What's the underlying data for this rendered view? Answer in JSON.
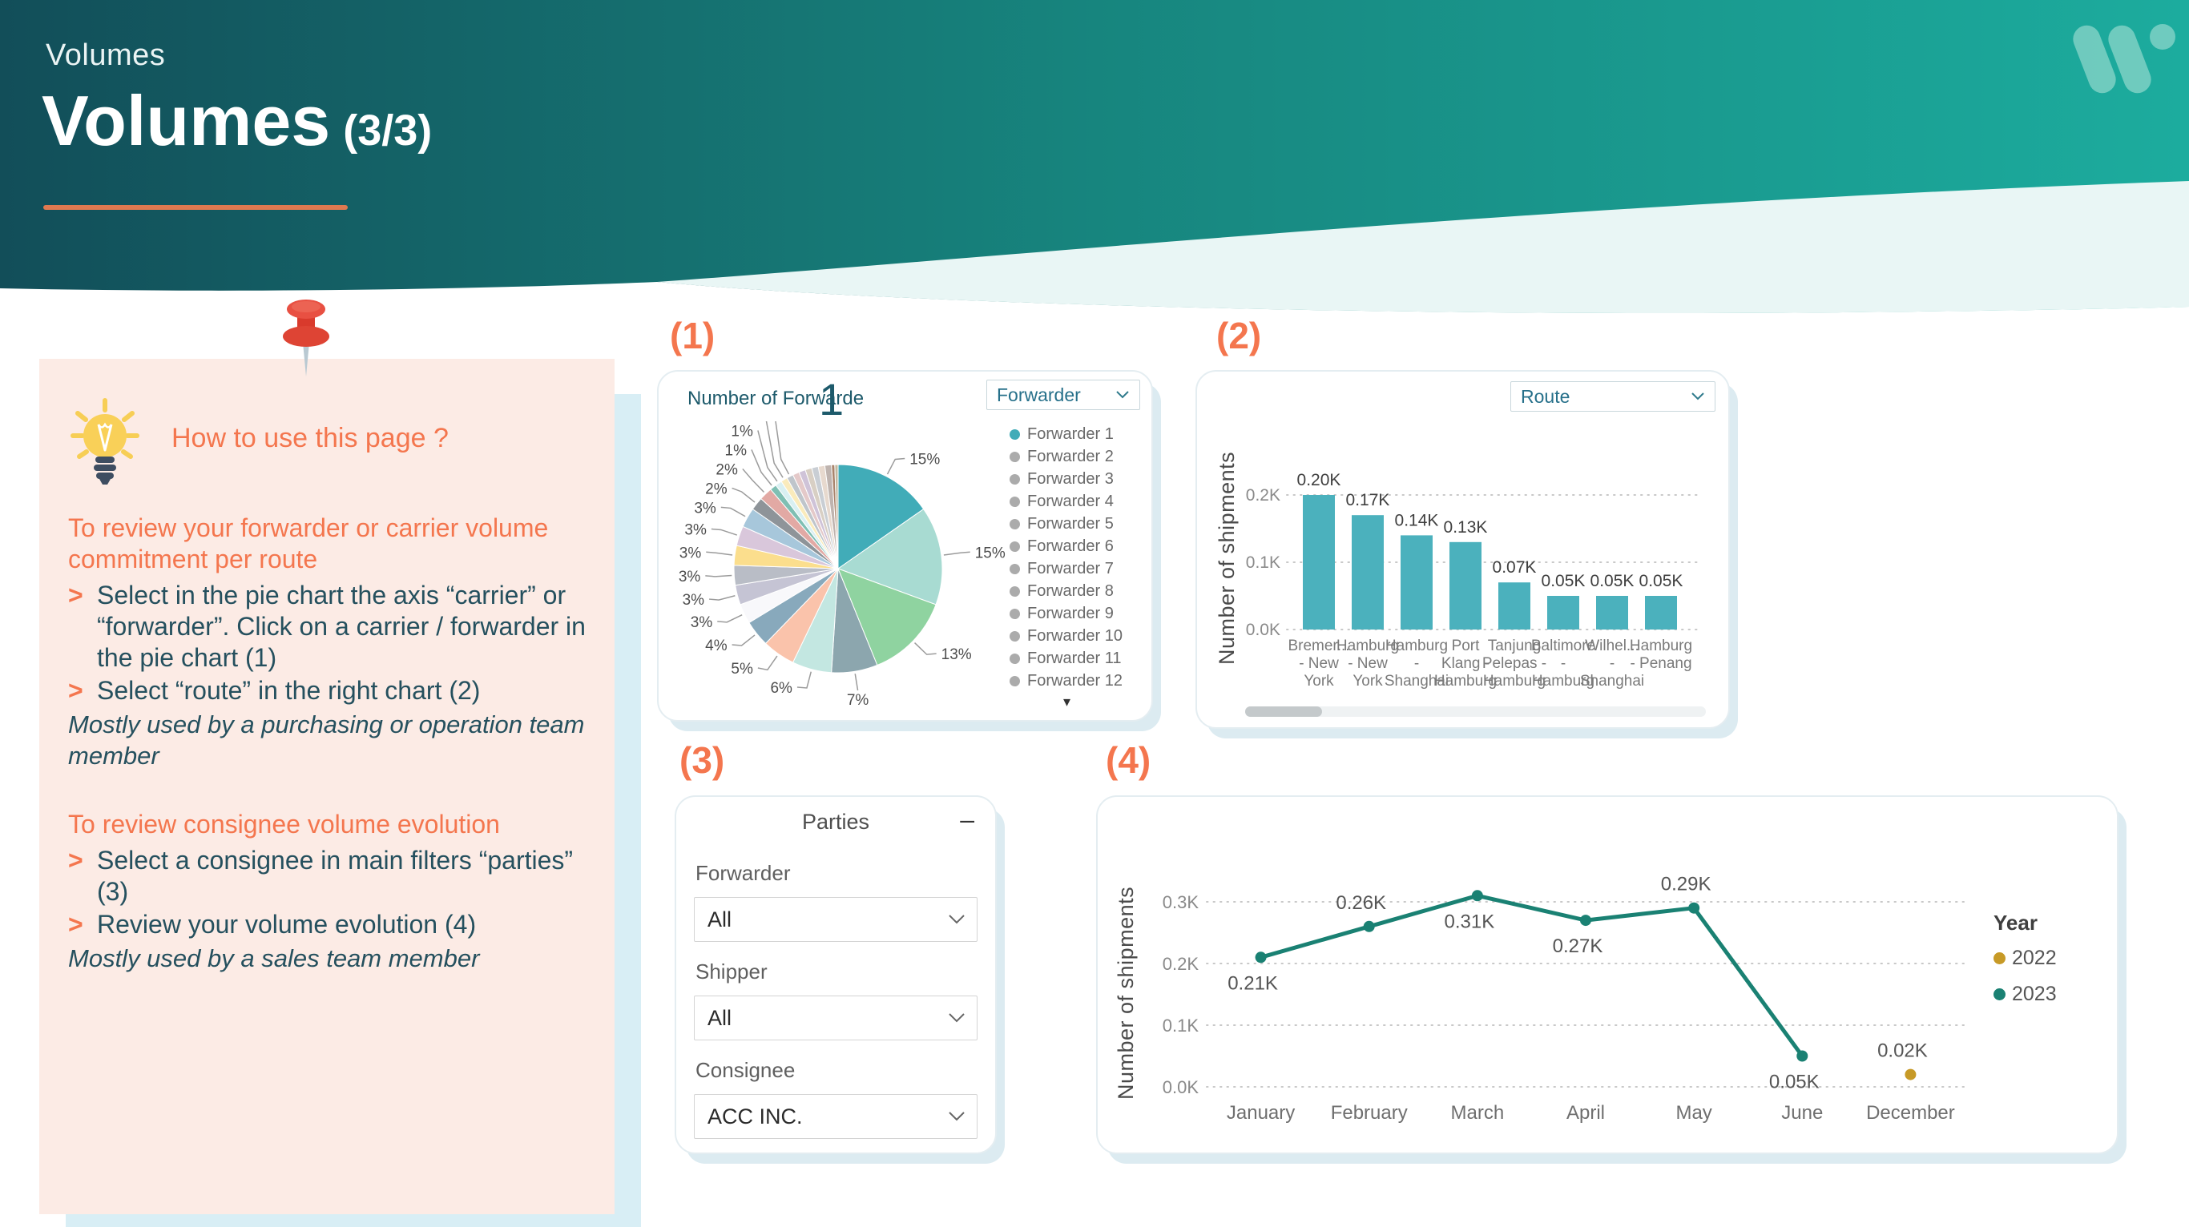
{
  "page": {
    "eyebrow": "Volumes",
    "title": "Volumes",
    "title_suffix": "(3/3)",
    "accent_color": "#F4764E",
    "header_gradient": [
      "#124E59",
      "#17857E",
      "#1CAC9E"
    ],
    "logo_color": "#7ED1C5"
  },
  "note": {
    "heading": "How to use this page ?",
    "bullet_marker": ">",
    "sections": [
      {
        "heading": "To review your forwarder or carrier volume commitment per route",
        "bullets": [
          "Select in the pie chart the axis “carrier” or “forwarder”. Click on a carrier / forwarder in the pie chart (1)",
          "Select “route” in the right chart (2)"
        ],
        "footnote": "Mostly used by a purchasing or operation team member"
      },
      {
        "heading": "To review consignee volume evolution",
        "bullets": [
          "Select a consignee in main filters “parties” (3)",
          "Review your volume evolution (4)"
        ],
        "footnote": "Mostly used by a sales team member"
      }
    ]
  },
  "panel1": {
    "marker": "(1)",
    "kpi_label": "Number of Forwarde",
    "kpi_value": "1",
    "dropdown_value": "Forwarder",
    "legend": {
      "pager_icon": "▾",
      "items": [
        {
          "label": "Forwarder 1",
          "color": "#41ACB8"
        },
        {
          "label": "Forwarder 2",
          "color": "#ABABAB"
        },
        {
          "label": "Forwarder 3",
          "color": "#ABABAB"
        },
        {
          "label": "Forwarder 4",
          "color": "#ABABAB"
        },
        {
          "label": "Forwarder 5",
          "color": "#ABABAB"
        },
        {
          "label": "Forwarder 6",
          "color": "#ABABAB"
        },
        {
          "label": "Forwarder 7",
          "color": "#ABABAB"
        },
        {
          "label": "Forwarder 8",
          "color": "#ABABAB"
        },
        {
          "label": "Forwarder 9",
          "color": "#ABABAB"
        },
        {
          "label": "Forwarder 10",
          "color": "#ABABAB"
        },
        {
          "label": "Forwarder 11",
          "color": "#ABABAB"
        },
        {
          "label": "Forwarder 12",
          "color": "#ABABAB"
        }
      ]
    }
  },
  "panel2": {
    "marker": "(2)",
    "dropdown_value": "Route"
  },
  "panel3": {
    "marker": "(3)",
    "title": "Parties",
    "collapse_label": "–",
    "filters": [
      {
        "label": "Forwarder",
        "value": "All"
      },
      {
        "label": "Shipper",
        "value": "All"
      },
      {
        "label": "Consignee",
        "value": "ACC INC."
      }
    ]
  },
  "panel4": {
    "marker": "(4)",
    "legend_title": "Year"
  },
  "chart_data": [
    {
      "id": "forwarder-share-pie",
      "type": "pie",
      "title": "Number of Forwarde",
      "legend_entries": [
        "Forwarder 1",
        "Forwarder 2",
        "Forwarder 3",
        "Forwarder 4",
        "Forwarder 5",
        "Forwarder 6",
        "Forwarder 7",
        "Forwarder 8",
        "Forwarder 9",
        "Forwarder 10",
        "Forwarder 11",
        "Forwarder 12"
      ],
      "slices": [
        {
          "label": "15%",
          "value": 15,
          "color": "#41ACB8"
        },
        {
          "label": "15%",
          "value": 15,
          "color": "#A8DBD2"
        },
        {
          "label": "13%",
          "value": 13,
          "color": "#8FD3A0"
        },
        {
          "label": "7%",
          "value": 7,
          "color": "#8CA6AE"
        },
        {
          "label": "6%",
          "value": 6,
          "color": "#C3E7E1"
        },
        {
          "label": "5%",
          "value": 5,
          "color": "#FAC3AB"
        },
        {
          "label": "4%",
          "value": 4,
          "color": "#88A9BC"
        },
        {
          "label": "3%",
          "value": 3,
          "color": "#F8F8FB"
        },
        {
          "label": "3%",
          "value": 3,
          "color": "#C5C4D4"
        },
        {
          "label": "3%",
          "value": 3,
          "color": "#B9BDC6"
        },
        {
          "label": "3%",
          "value": 3,
          "color": "#FBDE8D"
        },
        {
          "label": "3%",
          "value": 3,
          "color": "#D9C7DB"
        },
        {
          "label": "3%",
          "value": 3,
          "color": "#A7C7DB"
        },
        {
          "label": "2%",
          "value": 2,
          "color": "#8E9499"
        },
        {
          "label": "2%",
          "value": 2,
          "color": "#E2A9A4"
        },
        {
          "label": "1%",
          "value": 1,
          "color": "#7FBFB3"
        },
        {
          "label": "1%",
          "value": 1,
          "color": "#D9F0F2"
        },
        {
          "label": "1%",
          "value": 1,
          "color": "#FAEBBC"
        },
        {
          "label": "1%",
          "value": 1,
          "color": "#BFC5CB"
        },
        {
          "label": null,
          "value": 1,
          "color": "#E4C9C9"
        },
        {
          "label": null,
          "value": 1,
          "color": "#CFC3D8"
        },
        {
          "label": null,
          "value": 1,
          "color": "#D8CFC4"
        },
        {
          "label": null,
          "value": 1,
          "color": "#C9CED4"
        },
        {
          "label": null,
          "value": 1,
          "color": "#E7D9CE"
        },
        {
          "label": null,
          "value": 1,
          "color": "#BFB4AF"
        },
        {
          "label": null,
          "value": 0.5,
          "color": "#A9846C"
        },
        {
          "label": null,
          "value": 0.5,
          "color": "#C2B8A0"
        }
      ]
    },
    {
      "id": "shipments-per-route-bars",
      "type": "bar",
      "ylabel": "Number of shipments",
      "yticks": [
        "0.0K",
        "0.1K",
        "0.2K"
      ],
      "ylim": [
        0,
        0.23
      ],
      "grid": true,
      "bar_color": "#4BB1BD",
      "categories": [
        [
          "Bremer...",
          "- New",
          "York"
        ],
        [
          "Hamburg",
          "- New",
          "York"
        ],
        [
          "Hamburg",
          "-",
          "Shanghai"
        ],
        [
          "Port",
          "Klang -",
          "Hamburg"
        ],
        [
          "Tanjung",
          "Pelepas -",
          "Hamburg"
        ],
        [
          "Baltimore",
          "-",
          "Hamburg"
        ],
        [
          "Wilhel...",
          "-",
          "Shanghai"
        ],
        [
          "Hamburg",
          "- Penang"
        ]
      ],
      "values": [
        0.2,
        0.17,
        0.14,
        0.13,
        0.07,
        0.05,
        0.05,
        0.05
      ],
      "value_labels": [
        "0.20K",
        "0.17K",
        "0.14K",
        "0.13K",
        "0.07K",
        "0.05K",
        "0.05K",
        "0.05K"
      ]
    },
    {
      "id": "volume-evolution-line",
      "type": "line",
      "ylabel": "Number of shipments",
      "yticks": [
        "0.0K",
        "0.1K",
        "0.2K",
        "0.3K"
      ],
      "ylim": [
        0,
        0.345
      ],
      "grid": true,
      "legend_title": "Year",
      "legend_position": "right",
      "categories": [
        "January",
        "February",
        "March",
        "April",
        "May",
        "June",
        "December"
      ],
      "series": [
        {
          "name": "2022",
          "color": "#C79A27",
          "points": [
            {
              "x": "December",
              "y": 0.02,
              "label": "0.02K",
              "label_pos": "above"
            }
          ]
        },
        {
          "name": "2023",
          "color": "#1A8173",
          "points": [
            {
              "x": "January",
              "y": 0.21,
              "label": "0.21K",
              "label_pos": "below"
            },
            {
              "x": "February",
              "y": 0.26,
              "label": "0.26K",
              "label_pos": "above"
            },
            {
              "x": "March",
              "y": 0.31,
              "label": "0.31K",
              "label_pos": "below"
            },
            {
              "x": "April",
              "y": 0.27,
              "label": "0.27K",
              "label_pos": "below"
            },
            {
              "x": "May",
              "y": 0.29,
              "label": "0.29K",
              "label_pos": "above"
            },
            {
              "x": "June",
              "y": 0.05,
              "label": "0.05K",
              "label_pos": "below"
            }
          ]
        }
      ]
    }
  ]
}
